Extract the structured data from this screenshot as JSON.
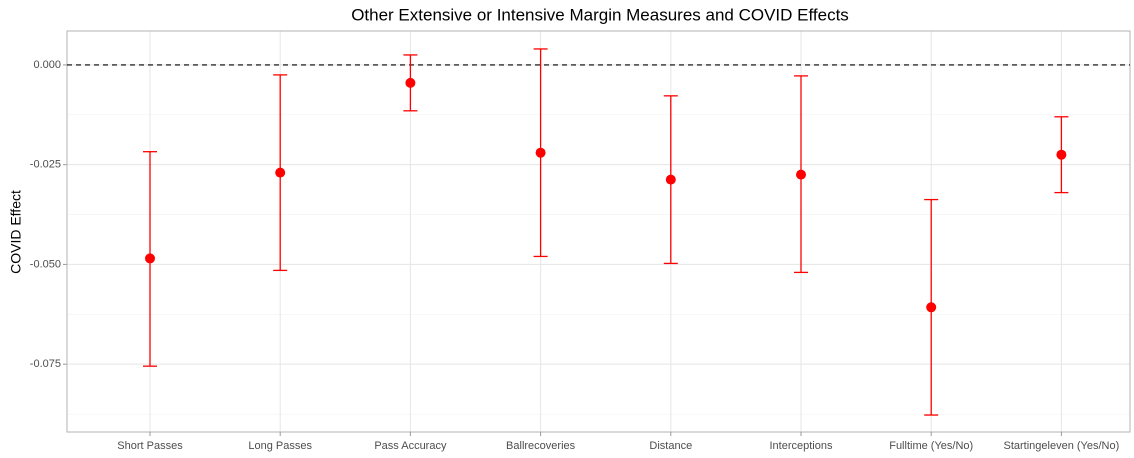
{
  "chart_data": {
    "type": "errorbar",
    "title": "Other Extensive or Intensive Margin Measures and COVID Effects",
    "y_label": "COVID Effect",
    "categories": [
      "Short Passes",
      "Long Passes",
      "Pass Accuracy",
      "Ballrecoveries",
      "Distance",
      "Interceptions",
      "Fulltime (Yes/No)",
      "Startingeleven (Yes/No)"
    ],
    "values": [
      -0.0485,
      -0.027,
      -0.0045,
      -0.022,
      -0.02875,
      -0.0275,
      -0.06075,
      -0.0225
    ],
    "lower": [
      -0.0755,
      -0.0515,
      -0.0115,
      -0.048,
      -0.04975,
      -0.052,
      -0.08775,
      -0.032
    ],
    "upper": [
      -0.02175,
      -0.0025,
      0.0025,
      0.004,
      -0.00775,
      -0.00275,
      -0.03375,
      -0.013
    ],
    "color": "#ff0000",
    "reference_line": 0,
    "ylim": [
      -0.092,
      0.0085
    ],
    "yticks": [
      {
        "value": 0,
        "label": "0.000"
      },
      {
        "value": -0.025,
        "label": "-0.025"
      },
      {
        "value": -0.05,
        "label": "-0.050"
      },
      {
        "value": -0.075,
        "label": "-0.075"
      }
    ],
    "grid": true
  }
}
